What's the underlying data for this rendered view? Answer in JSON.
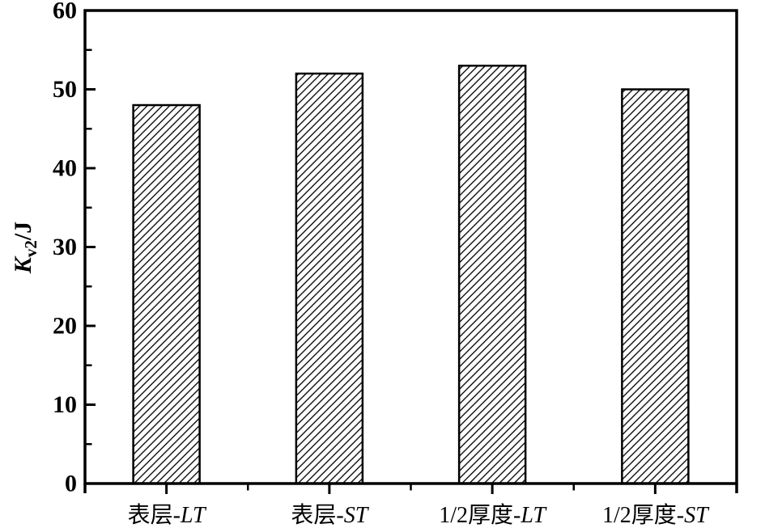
{
  "chart_data": {
    "type": "bar",
    "title": "",
    "categories": [
      "表层-LT",
      "表层-ST",
      "1/2厚度-LT",
      "1/2厚度-ST"
    ],
    "category_parts": [
      [
        {
          "text": "表层-",
          "italic": false
        },
        {
          "text": "LT",
          "italic": true
        }
      ],
      [
        {
          "text": "表层-",
          "italic": false
        },
        {
          "text": "ST",
          "italic": true
        }
      ],
      [
        {
          "text": "1/2厚度-",
          "italic": false
        },
        {
          "text": "LT",
          "italic": true
        }
      ],
      [
        {
          "text": "1/2厚度-",
          "italic": false
        },
        {
          "text": "ST",
          "italic": true
        }
      ]
    ],
    "values": [
      48,
      52,
      53,
      50
    ],
    "xlabel": "",
    "ylabel": "Kv2/J",
    "ylabel_parts": {
      "symbol": "K",
      "subscript": "v2",
      "suffix": "/J"
    },
    "ylim": [
      0,
      60
    ],
    "y_major_ticks": [
      0,
      10,
      20,
      30,
      40,
      50,
      60
    ],
    "y_minor_ticks": [
      5,
      15,
      25,
      35,
      45,
      55
    ],
    "grid": false,
    "legend": null,
    "bar_style": {
      "fill": "#ffffff",
      "hatch": "diagonal-forward",
      "outline": "#000000"
    },
    "colors": {
      "axis": "#000000",
      "text": "#000000",
      "hatch_line": "#000000",
      "background": "#ffffff"
    }
  }
}
